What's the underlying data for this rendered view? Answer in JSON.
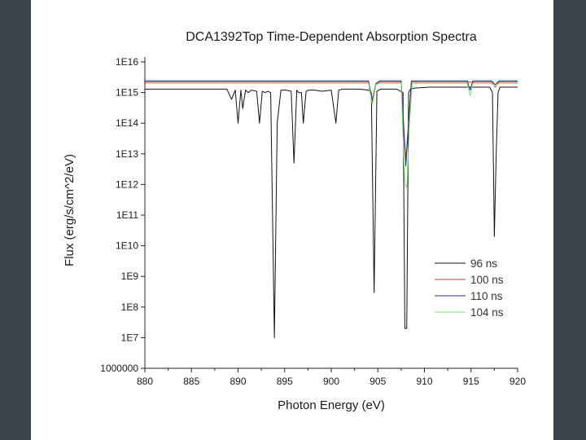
{
  "chart_data": {
    "type": "line",
    "title": "DCA1392Top Time-Dependent Absorption Spectra",
    "xlabel": "Photon Energy (eV)",
    "ylabel": "Flux (erg/s/cm^2/eV)",
    "xlim": [
      880,
      920
    ],
    "ylim": [
      1000000,
      1e+16
    ],
    "yscale": "log",
    "grid": false,
    "legend_position": "bottom-right",
    "x_ticks": [
      880,
      885,
      890,
      895,
      900,
      905,
      910,
      915,
      920
    ],
    "x_tick_labels": [
      "880",
      "885",
      "890",
      "895",
      "900",
      "905",
      "910",
      "915",
      "920"
    ],
    "y_ticks": [
      1000000,
      10000000.0,
      100000000.0,
      1000000000.0,
      10000000000.0,
      100000000000.0,
      1000000000000.0,
      10000000000000.0,
      100000000000000.0,
      1000000000000000.0,
      1e+16
    ],
    "y_tick_labels": [
      "1000000",
      "1E7",
      "1E8",
      "1E9",
      "1E10",
      "1E11",
      "1E12",
      "1E13",
      "1E14",
      "1E15",
      "1E16"
    ],
    "series": [
      {
        "name": "96 ns",
        "color": "#111111",
        "x": [
          880,
          888.8,
          889.3,
          889.7,
          890.0,
          890.3,
          890.5,
          890.8,
          891.1,
          891.4,
          892.0,
          892.3,
          892.6,
          892.9,
          893.2,
          893.5,
          893.9,
          894.2,
          894.6,
          895.2,
          895.7,
          896.0,
          896.3,
          896.5,
          896.8,
          897.0,
          897.3,
          897.6,
          898.2,
          899.0,
          900.0,
          900.5,
          900.8,
          901.2,
          903.0,
          904.0,
          904.3,
          904.6,
          904.9,
          905.3,
          907.0,
          907.7,
          907.9,
          908.1,
          908.3,
          908.5,
          908.9,
          910.5,
          913.0,
          917.0,
          917.3,
          917.5,
          917.7,
          917.9,
          918.1,
          918.5,
          920
        ],
        "y": [
          1300000000000000.0,
          1300000000000000.0,
          600000000000000.0,
          1200000000000000.0,
          100000000000000.0,
          1200000000000000.0,
          300000000000000.0,
          1200000000000000.0,
          1000000000000000.0,
          1200000000000000.0,
          1100000000000000.0,
          100000000000000.0,
          1100000000000000.0,
          1000000000000000.0,
          1100000000000000.0,
          1000000000000000.0,
          10000000.0,
          100000000000000.0,
          1200000000000000.0,
          1200000000000000.0,
          1100000000000000.0,
          5000000000000.0,
          1200000000000000.0,
          1000000000000000.0,
          1000000000000000.0,
          100000000000000.0,
          1100000000000000.0,
          1200000000000000.0,
          1200000000000000.0,
          1100000000000000.0,
          1200000000000000.0,
          100000000000000.0,
          1200000000000000.0,
          1300000000000000.0,
          1300000000000000.0,
          1200000000000000.0,
          1000000000000000.0,
          300000000.0,
          1100000000000000.0,
          1300000000000000.0,
          1300000000000000.0,
          1000000000000000.0,
          20000000.0,
          20000000.0,
          1000000000000000.0,
          1300000000000000.0,
          1400000000000000.0,
          1500000000000000.0,
          1500000000000000.0,
          1500000000000000.0,
          1000000000000000.0,
          20000000000.0,
          10000000000000.0,
          1000000000000000.0,
          1500000000000000.0,
          1500000000000000.0,
          1500000000000000.0
        ]
      },
      {
        "name": "100 ns",
        "color": "#c0392b",
        "x": [
          880,
          904.0,
          904.4,
          904.8,
          905.2,
          907.5,
          908.0,
          908.3,
          908.6,
          915.0,
          917.2,
          917.6,
          918.0,
          920
        ],
        "y": [
          2200000000000000.0,
          2200000000000000.0,
          600000000000000.0,
          1800000000000000.0,
          2200000000000000.0,
          2200000000000000.0,
          6000000000000.0,
          100000000000000.0,
          2200000000000000.0,
          2200000000000000.0,
          2200000000000000.0,
          1500000000000000.0,
          2200000000000000.0,
          2200000000000000.0
        ]
      },
      {
        "name": "110 ns",
        "color": "#2d2d7a",
        "x": [
          880,
          904.0,
          904.4,
          904.8,
          905.2,
          907.5,
          908.0,
          908.3,
          908.6,
          914.6,
          914.9,
          915.2,
          917.2,
          917.6,
          918.0,
          920
        ],
        "y": [
          2400000000000000.0,
          2400000000000000.0,
          500000000000000.0,
          2000000000000000.0,
          2400000000000000.0,
          2400000000000000.0,
          4000000000000.0,
          100000000000000.0,
          2400000000000000.0,
          2400000000000000.0,
          1200000000000000.0,
          2400000000000000.0,
          2400000000000000.0,
          1800000000000000.0,
          2400000000000000.0,
          2400000000000000.0
        ]
      },
      {
        "name": "104 ns",
        "color": "#7fe07a",
        "x": [
          880,
          904.0,
          904.4,
          904.8,
          905.2,
          907.5,
          907.9,
          908.1,
          908.4,
          908.7,
          914.6,
          914.9,
          915.2,
          917.2,
          917.6,
          918.0,
          920
        ],
        "y": [
          2000000000000000.0,
          2000000000000000.0,
          400000000000000.0,
          1800000000000000.0,
          2000000000000000.0,
          2000000000000000.0,
          1000000000000.0,
          800000000000.0,
          100000000000000.0,
          2000000000000000.0,
          2000000000000000.0,
          800000000000000.0,
          2000000000000000.0,
          2000000000000000.0,
          1600000000000000.0,
          2000000000000000.0,
          2000000000000000.0
        ]
      }
    ]
  }
}
